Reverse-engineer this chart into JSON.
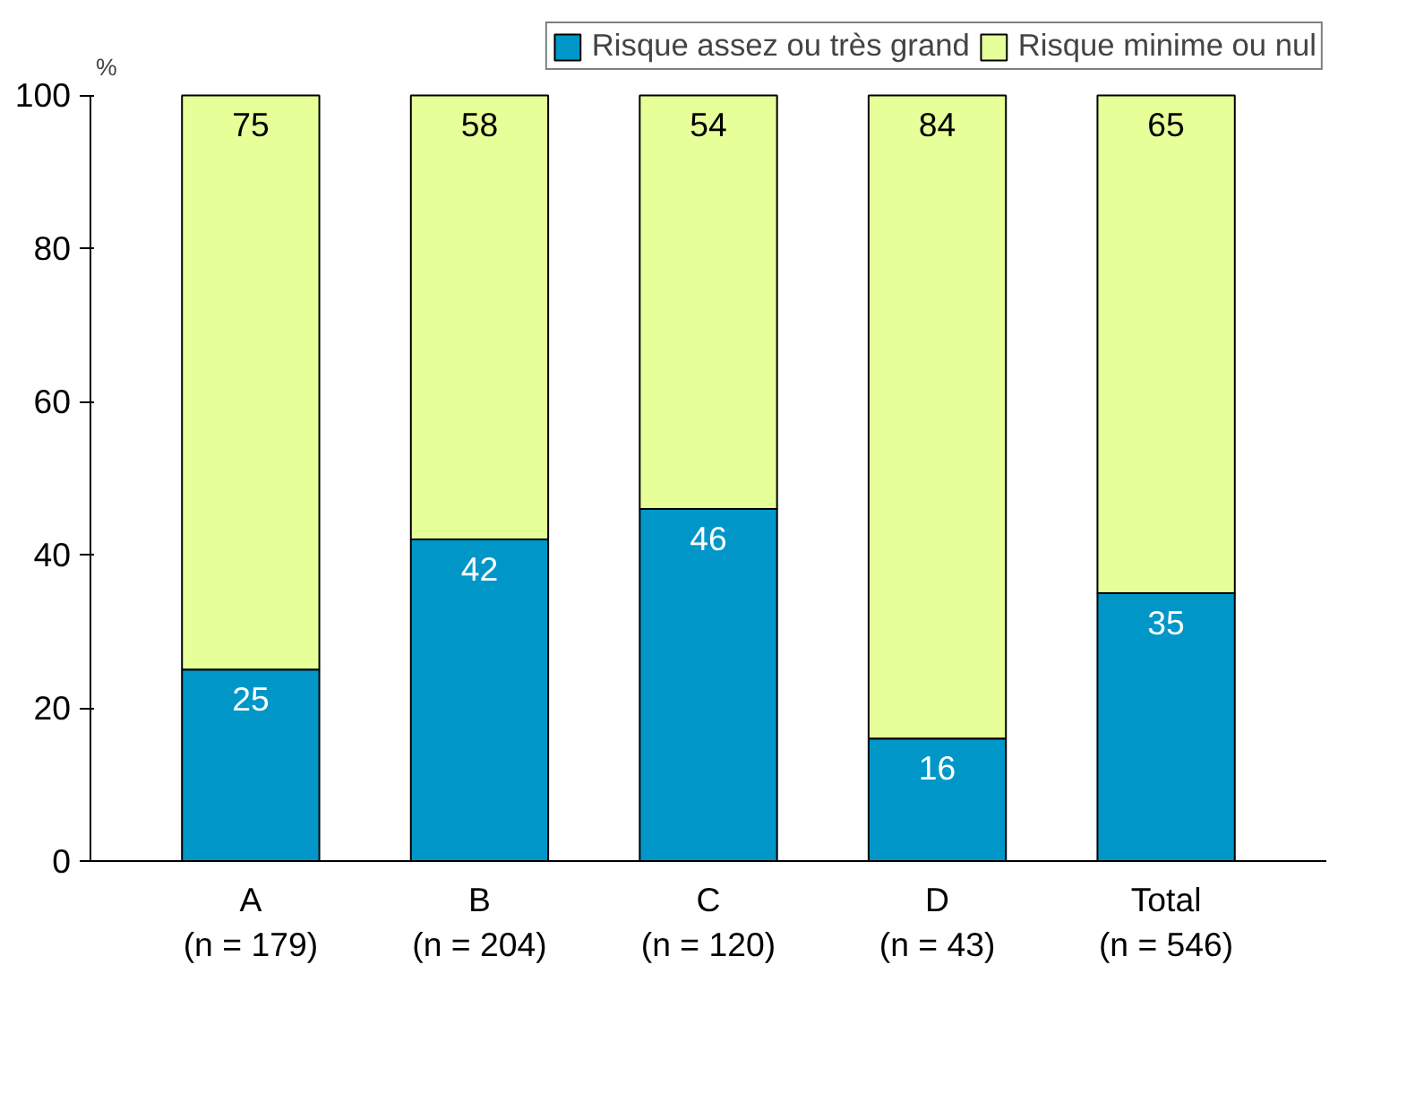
{
  "chart_data": {
    "type": "bar",
    "stacked": true,
    "ylabel": "%",
    "categories": [
      "A\n(n = 179)",
      "B\n(n = 204)",
      "C\n(n = 120)",
      "D\n(n = 43)",
      "Total\n(n = 546)"
    ],
    "series": [
      {
        "name": "Risque assez ou très grand",
        "color": "#0097c8",
        "values": [
          25,
          42,
          46,
          16,
          35
        ]
      },
      {
        "name": "Risque minime ou nul",
        "color": "#e6ff99",
        "values": [
          75,
          58,
          54,
          84,
          65
        ]
      }
    ],
    "ylim": [
      0,
      100
    ],
    "yticks": [
      0,
      20,
      40,
      60,
      80,
      100
    ],
    "grid": false,
    "legend": "top right",
    "data_labels": true
  }
}
